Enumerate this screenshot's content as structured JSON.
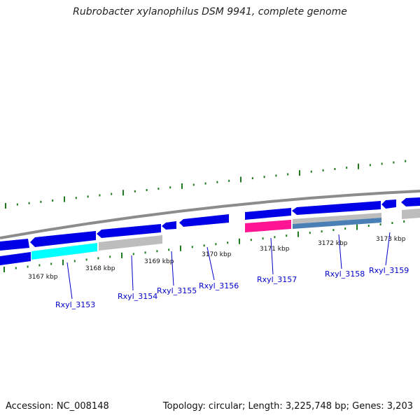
{
  "title": "Rubrobacter xylanophilus DSM 9941, complete genome",
  "footer": {
    "accession": "Accession: NC_008148",
    "summary": "Topology: circular; Length: 3,225,748 bp; Genes: 3,203"
  },
  "colors": {
    "backbone": "#8c8c8c",
    "tick": "#1f7a1f",
    "gene_blue": "#0000e6",
    "gene_cyan": "#00ffff",
    "gene_grey": "#bdbdbd",
    "gene_pink": "#ff1493",
    "gene_steel": "#4a7fb5",
    "label_line": "#0000cc"
  },
  "kbp_labels": [
    "3167 kbp",
    "3168 kbp",
    "3169 kbp",
    "3170 kbp",
    "3171 kbp",
    "3172 kbp",
    "3173 kbp"
  ],
  "gene_labels": [
    "Rxyl_3153",
    "Rxyl_3154",
    "Rxyl_3155",
    "Rxyl_3156",
    "Rxyl_3157",
    "Rxyl_3158",
    "Rxyl_3159"
  ]
}
